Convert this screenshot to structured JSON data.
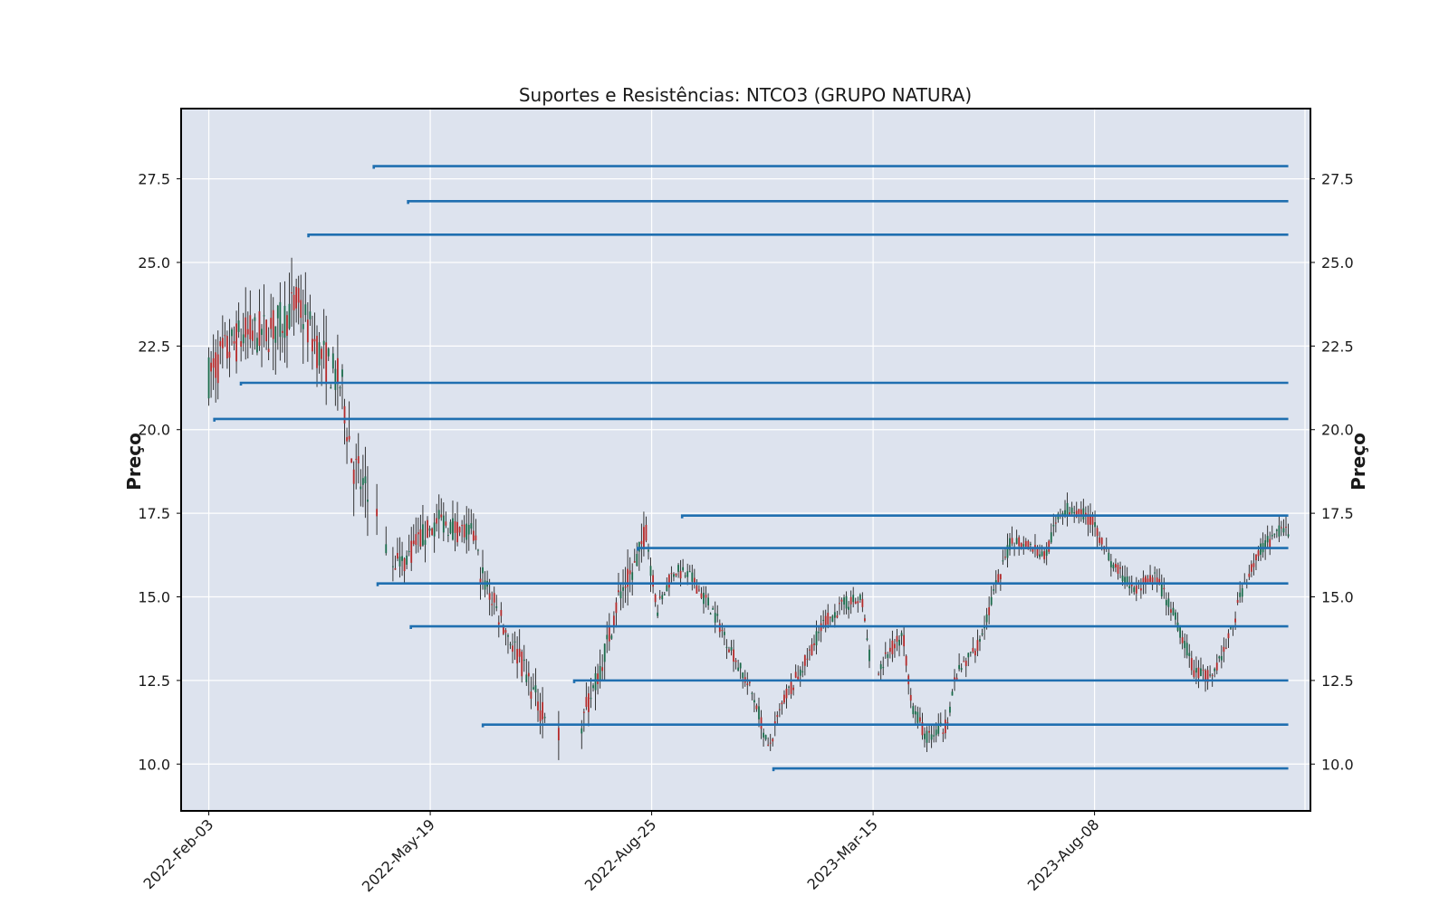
{
  "chart_data": {
    "type": "candlestick",
    "title": "Suportes e Resistências: NTCO3 (GRUPO NATURA)",
    "ylabel_left": "Preço",
    "ylabel_right": "Preço",
    "ylim": [
      8.6,
      29.6
    ],
    "yticks": [
      10.0,
      12.5,
      15.0,
      17.5,
      20.0,
      22.5,
      25.0,
      27.5
    ],
    "yticklabels": [
      "10.0",
      "12.5",
      "15.0",
      "17.5",
      "20.0",
      "22.5",
      "25.0",
      "27.5"
    ],
    "xlim": [
      -0.5,
      19.9
    ],
    "xticks": [
      {
        "pos": 0,
        "label": "2022-Feb-03"
      },
      {
        "pos": 4,
        "label": "2022-May-19"
      },
      {
        "pos": 8,
        "label": "2022-Aug-25"
      },
      {
        "pos": 12,
        "label": "2023-Mar-15"
      },
      {
        "pos": 16,
        "label": "2023-Aug-08"
      }
    ],
    "candle_up_color": "#1a6b4a",
    "candle_down_color": "#b52a2a",
    "level_color": "#1f6fb0",
    "grid": true,
    "background": "#dde3ee",
    "price_path": [
      [
        0.0,
        21.6
      ],
      [
        0.3,
        22.3
      ],
      [
        0.6,
        22.8
      ],
      [
        1.0,
        22.9
      ],
      [
        1.3,
        23.2
      ],
      [
        1.6,
        23.8
      ],
      [
        2.0,
        22.3
      ],
      [
        2.4,
        21.3
      ],
      [
        2.6,
        19.0
      ],
      [
        3.0,
        17.4
      ],
      [
        3.25,
        16.2
      ],
      [
        3.5,
        16.0
      ],
      [
        3.85,
        16.8
      ],
      [
        4.2,
        17.3
      ],
      [
        4.5,
        17.0
      ],
      [
        4.8,
        16.8
      ],
      [
        4.9,
        15.8
      ],
      [
        5.2,
        14.6
      ],
      [
        5.6,
        13.2
      ],
      [
        5.95,
        11.8
      ],
      [
        6.2,
        10.8
      ],
      [
        6.6,
        10.6
      ],
      [
        6.9,
        12.0
      ],
      [
        7.2,
        13.6
      ],
      [
        7.4,
        15.0
      ],
      [
        7.7,
        15.9
      ],
      [
        7.9,
        17.0
      ],
      [
        8.1,
        14.6
      ],
      [
        8.4,
        15.8
      ],
      [
        8.7,
        15.6
      ],
      [
        9.1,
        14.6
      ],
      [
        9.5,
        13.2
      ],
      [
        9.9,
        11.8
      ],
      [
        10.1,
        10.4
      ],
      [
        10.4,
        12.0
      ],
      [
        10.7,
        12.8
      ],
      [
        11.1,
        14.2
      ],
      [
        11.5,
        14.8
      ],
      [
        11.8,
        14.9
      ],
      [
        12.0,
        12.4
      ],
      [
        12.3,
        13.4
      ],
      [
        12.55,
        13.8
      ],
      [
        12.7,
        11.8
      ],
      [
        12.95,
        10.8
      ],
      [
        13.3,
        11.1
      ],
      [
        13.5,
        12.6
      ],
      [
        13.9,
        13.6
      ],
      [
        14.2,
        15.2
      ],
      [
        14.5,
        16.7
      ],
      [
        14.8,
        16.6
      ],
      [
        15.1,
        16.2
      ],
      [
        15.4,
        17.6
      ],
      [
        15.7,
        17.6
      ],
      [
        16.0,
        17.2
      ],
      [
        16.3,
        16.0
      ],
      [
        16.7,
        15.2
      ],
      [
        17.1,
        15.6
      ],
      [
        17.5,
        14.2
      ],
      [
        17.8,
        12.8
      ],
      [
        18.1,
        12.6
      ],
      [
        18.4,
        13.6
      ],
      [
        18.7,
        15.4
      ],
      [
        19.0,
        16.4
      ],
      [
        19.3,
        16.9
      ],
      [
        19.5,
        17.0
      ]
    ],
    "gaps": [
      [
        2.9,
        3.3
      ],
      [
        6.1,
        6.7
      ],
      [
        11.9,
        12.1
      ]
    ],
    "levels": [
      {
        "start": 2.98,
        "end": 19.5,
        "price": 27.88
      },
      {
        "start": 3.6,
        "end": 19.5,
        "price": 26.83
      },
      {
        "start": 1.8,
        "end": 19.5,
        "price": 25.83
      },
      {
        "start": 0.58,
        "end": 19.5,
        "price": 21.4
      },
      {
        "start": 0.1,
        "end": 19.5,
        "price": 20.32
      },
      {
        "start": 8.55,
        "end": 19.5,
        "price": 17.43
      },
      {
        "start": 7.75,
        "end": 19.5,
        "price": 16.46
      },
      {
        "start": 3.05,
        "end": 19.5,
        "price": 15.4
      },
      {
        "start": 3.65,
        "end": 19.5,
        "price": 14.12
      },
      {
        "start": 6.6,
        "end": 19.5,
        "price": 12.5
      },
      {
        "start": 4.95,
        "end": 19.5,
        "price": 11.18
      },
      {
        "start": 10.2,
        "end": 19.5,
        "price": 9.87
      }
    ]
  }
}
